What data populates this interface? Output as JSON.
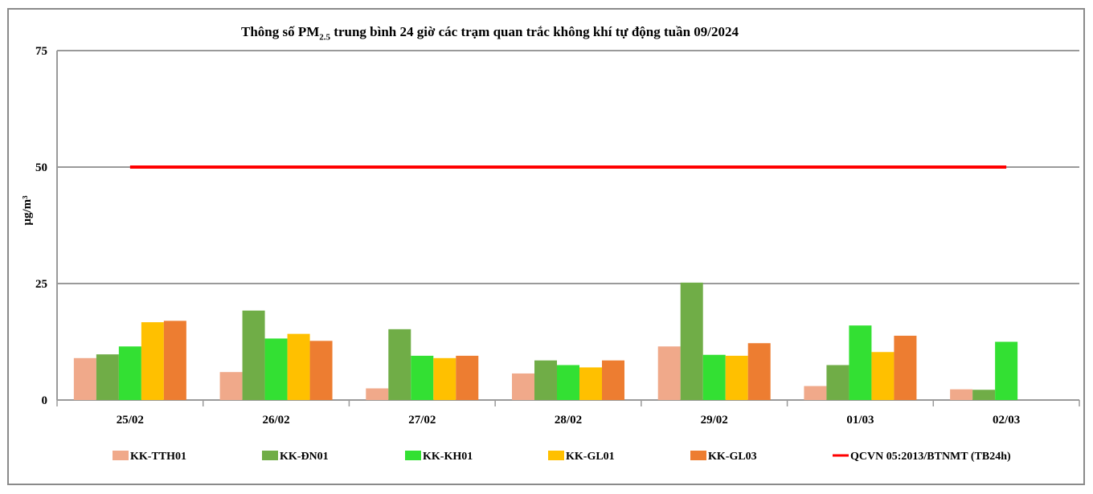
{
  "chart_data": {
    "type": "bar",
    "title_prefix": "Thông số PM",
    "title_sub": "2.5",
    "title_suffix": " trung bình 24 giờ các trạm quan trắc không khí tự động tuần 09/2024",
    "ylabel": "µg/m³",
    "ylim": [
      0,
      75
    ],
    "yticks": [
      0,
      25,
      50,
      75
    ],
    "grid": true,
    "legend_position": "bottom",
    "categories": [
      "25/02",
      "26/02",
      "27/02",
      "28/02",
      "29/02",
      "01/03",
      "02/03"
    ],
    "series": [
      {
        "name": "KK-TTH01",
        "color": "#f0a98a",
        "values": [
          9.0,
          6.0,
          2.5,
          5.7,
          11.5,
          3.0,
          2.3
        ]
      },
      {
        "name": "KK-ĐN01",
        "color": "#70ad47",
        "values": [
          9.8,
          19.2,
          15.2,
          8.5,
          25.2,
          7.5,
          2.2
        ]
      },
      {
        "name": "KK-KH01",
        "color": "#33e033",
        "values": [
          11.5,
          13.2,
          9.5,
          7.5,
          9.7,
          16.0,
          12.5
        ]
      },
      {
        "name": "KK-GL01",
        "color": "#ffc000",
        "values": [
          16.7,
          14.2,
          9.0,
          7.0,
          9.5,
          10.3,
          null
        ]
      },
      {
        "name": "KK-GL03",
        "color": "#ed7d31",
        "values": [
          17.0,
          12.7,
          9.5,
          8.5,
          12.2,
          13.8,
          null
        ]
      }
    ],
    "limit_line": {
      "name": "QCVN 05:2013/BTNMT (TB24h)",
      "color": "#ff0000",
      "value": 50
    }
  }
}
